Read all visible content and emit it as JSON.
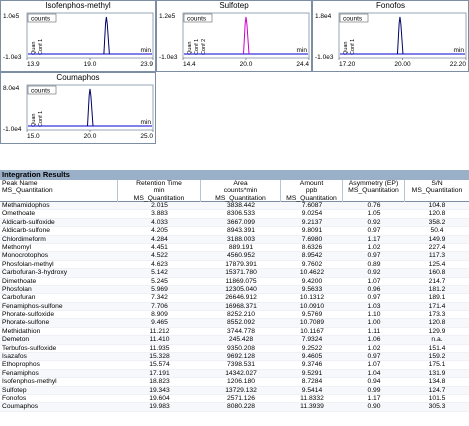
{
  "chromatograms": [
    {
      "title": "Isofenphos-methyl",
      "y_top": "1.0e5",
      "y_bottom": "-1.0e3",
      "x_ticks": [
        "13.9",
        "19.0",
        "23.9"
      ],
      "legend": "counts",
      "x_unit": "min",
      "side_labels": [
        "Quan",
        "Conf 1"
      ],
      "peak_color": "#000066"
    },
    {
      "title": "Sulfotep",
      "y_top": "1.2e5",
      "y_bottom": "-1.0e3",
      "x_ticks": [
        "14.4",
        "20.0",
        "24.4"
      ],
      "legend": "counts",
      "x_unit": "min",
      "side_labels": [
        "Quan",
        "Conf 1",
        "Conf 2"
      ],
      "peak_color": "#cc00cc"
    },
    {
      "title": "Fonofos",
      "y_top": "1.8e4",
      "y_bottom": "-1.0e3",
      "x_ticks": [
        "17.20",
        "20.00",
        "22.20"
      ],
      "legend": "counts",
      "x_unit": "min",
      "side_labels": [
        "Quan",
        "Conf 1"
      ],
      "peak_color": "#000066"
    },
    {
      "title": "Coumaphos",
      "y_top": "8.0e4",
      "y_bottom": "-1.0e4",
      "x_ticks": [
        "15.0",
        "20.0",
        "25.0"
      ],
      "legend": "counts",
      "x_unit": "min",
      "side_labels": [
        "Quan",
        "Conf 1"
      ],
      "peak_color": "#000066"
    }
  ],
  "integration": {
    "header": "Integration Results",
    "columns": [
      {
        "label": "Peak Name",
        "sub": "",
        "method": "MS_Quantitation"
      },
      {
        "label": "Retention Time",
        "sub": "min",
        "method": "MS_Quantitation"
      },
      {
        "label": "Area",
        "sub": "counts*min",
        "method": "MS_Quantitation"
      },
      {
        "label": "Amount",
        "sub": "ppb",
        "method": "MS_Quantitation"
      },
      {
        "label": "Asymmetry (EP)",
        "sub": "",
        "method": "MS_Quantitation"
      },
      {
        "label": "S/N",
        "sub": "",
        "method": "MS_Quantitation"
      }
    ],
    "rows": [
      [
        "Methamidophos",
        "2.015",
        "3838.442",
        "7.6087",
        "0.76",
        "104.8"
      ],
      [
        "Omethoate",
        "3.883",
        "8306.533",
        "9.0254",
        "1.05",
        "120.8"
      ],
      [
        "Aldicarb-sulfoxide",
        "4.033",
        "3667.099",
        "9.2137",
        "0.92",
        "358.2"
      ],
      [
        "Aldicarb-sulfone",
        "4.205",
        "8943.391",
        "9.8091",
        "0.97",
        "50.4"
      ],
      [
        "Chlordimeform",
        "4.284",
        "3188.003",
        "7.6980",
        "1.17",
        "149.9"
      ],
      [
        "Methomyl",
        "4.451",
        "889.191",
        "8.6326",
        "1.02",
        "227.4"
      ],
      [
        "Monocrotophos",
        "4.522",
        "4560.952",
        "8.9542",
        "0.97",
        "117.3"
      ],
      [
        "Phosfolan-methyl",
        "4.623",
        "17879.391",
        "9.7602",
        "0.89",
        "125.4"
      ],
      [
        "Carbofuran-3-hydroxy",
        "5.142",
        "15371.780",
        "10.4622",
        "0.92",
        "160.8"
      ],
      [
        "Dimethoate",
        "5.245",
        "11869.075",
        "9.4200",
        "1.07",
        "214.7"
      ],
      [
        "Phosfolan",
        "5.969",
        "12305.040",
        "9.5633",
        "0.96",
        "181.2"
      ],
      [
        "Carbofuran",
        "7.342",
        "26646.912",
        "10.1312",
        "0.97",
        "189.1"
      ],
      [
        "Fenamiphos-sulfone",
        "7.706",
        "16968.371",
        "10.0910",
        "1.03",
        "171.4"
      ],
      [
        "Phorate-sulfoxide",
        "8.909",
        "8252.210",
        "9.5769",
        "1.10",
        "173.3"
      ],
      [
        "Phorate-sulfone",
        "9.465",
        "8552.092",
        "10.7089",
        "1.00",
        "120.8"
      ],
      [
        "Methidathion",
        "11.212",
        "3744.778",
        "10.1167",
        "1.11",
        "129.9"
      ],
      [
        "Demeton",
        "11.410",
        "245.428",
        "7.9324",
        "1.06",
        "n.a."
      ],
      [
        "Terbufos-sulfoxide",
        "11.935",
        "9350.208",
        "9.2522",
        "1.02",
        "151.4"
      ],
      [
        "Isazafos",
        "15.328",
        "9692.128",
        "9.4605",
        "0.97",
        "159.2"
      ],
      [
        "Ethoprophos",
        "15.574",
        "7398.531",
        "9.3746",
        "1.07",
        "175.1"
      ],
      [
        "Fenamiphos",
        "17.191",
        "14342.027",
        "9.5291",
        "1.04",
        "131.9"
      ],
      [
        "Isofenphos-methyl",
        "18.823",
        "1206.180",
        "8.7284",
        "0.94",
        "134.8"
      ],
      [
        "Sulfotep",
        "19.343",
        "13729.132",
        "9.5414",
        "0.99",
        "124.7"
      ],
      [
        "Fonofos",
        "19.604",
        "2571.126",
        "11.8332",
        "1.17",
        "101.5"
      ],
      [
        "Coumaphos",
        "19.983",
        "8080.228",
        "11.3939",
        "0.90",
        "305.3"
      ]
    ]
  }
}
